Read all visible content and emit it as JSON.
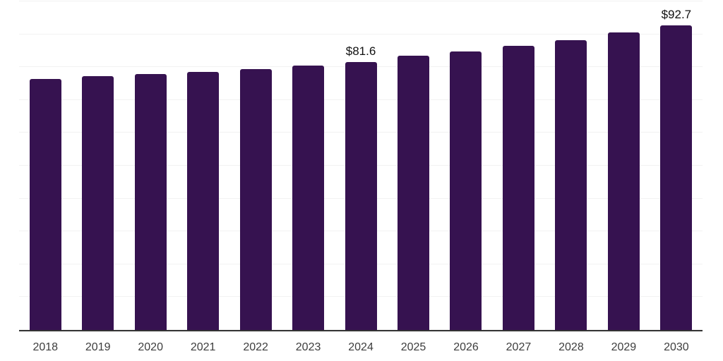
{
  "chart_data": {
    "type": "bar",
    "title": "",
    "xlabel": "",
    "ylabel": "",
    "categories": [
      "2018",
      "2019",
      "2020",
      "2021",
      "2022",
      "2023",
      "2024",
      "2025",
      "2026",
      "2027",
      "2028",
      "2029",
      "2030"
    ],
    "values": [
      76.4,
      77.3,
      77.8,
      78.5,
      79.4,
      80.5,
      81.6,
      83.4,
      84.8,
      86.4,
      88.3,
      90.5,
      92.7
    ],
    "data_labels": {
      "2024": "$81.6",
      "2030": "$92.7"
    },
    "ylim": [
      0,
      100
    ],
    "gridline_step": 10,
    "grid": true,
    "legend": "none",
    "colors": {
      "bar": "#361250",
      "gridline": "#f2f2f2",
      "axis_line": "#333333",
      "tick_label": "#3d3d3d",
      "data_label": "#111111"
    }
  }
}
